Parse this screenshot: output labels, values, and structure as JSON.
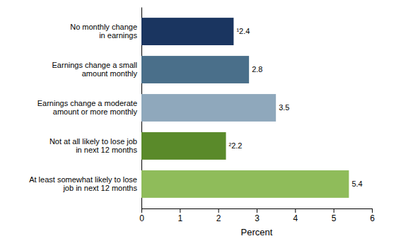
{
  "chart_data": {
    "type": "bar",
    "orientation": "horizontal",
    "categories": [
      "At least somewhat likely to lose\njob in next 12 months",
      "Not at all likely to lose job\nin next 12 months",
      "Earnings change a moderate\namount or more monthly",
      "Earnings change a small\namount monthly",
      "No monthly change\nin earnings"
    ],
    "values": [
      5.4,
      2.2,
      3.5,
      2.8,
      2.4
    ],
    "value_labels": [
      "5.4",
      "²2.2",
      "3.5",
      "2.8",
      "¹2.4"
    ],
    "data_labels": true,
    "colors": [
      "#8fbc5a",
      "#5a8a2a",
      "#8fa8bc",
      "#4a6f8a",
      "#1a3560"
    ],
    "xlabel": "Percent",
    "xlim": [
      0,
      6
    ],
    "xticks": [
      0,
      1,
      2,
      3,
      4,
      5,
      6
    ],
    "grid": false
  }
}
